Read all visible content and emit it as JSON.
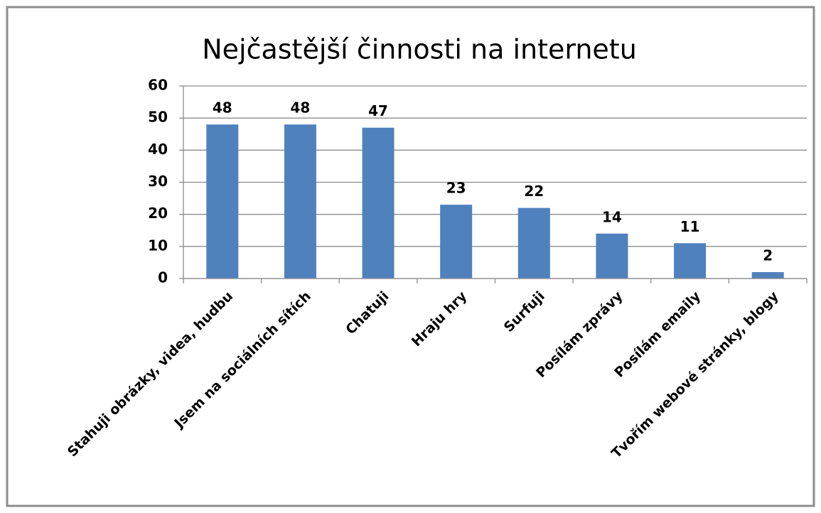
{
  "chart_data": {
    "type": "bar",
    "title": "Nejčastější činnosti na internetu",
    "categories": [
      "Stahuji obrázky, videa, hudbu",
      "Jsem na sociálních sítích",
      "Chatuji",
      "Hraju hry",
      "Surfuji",
      "Posílám zprávy",
      "Posílám emaily",
      "Tvořím webové stránky, blogy"
    ],
    "values": [
      48,
      48,
      47,
      23,
      22,
      14,
      11,
      2
    ],
    "color": "#4f81bd",
    "ylim": [
      0,
      60
    ],
    "yticks": [
      0,
      10,
      20,
      30,
      40,
      50,
      60
    ],
    "grid": true
  }
}
